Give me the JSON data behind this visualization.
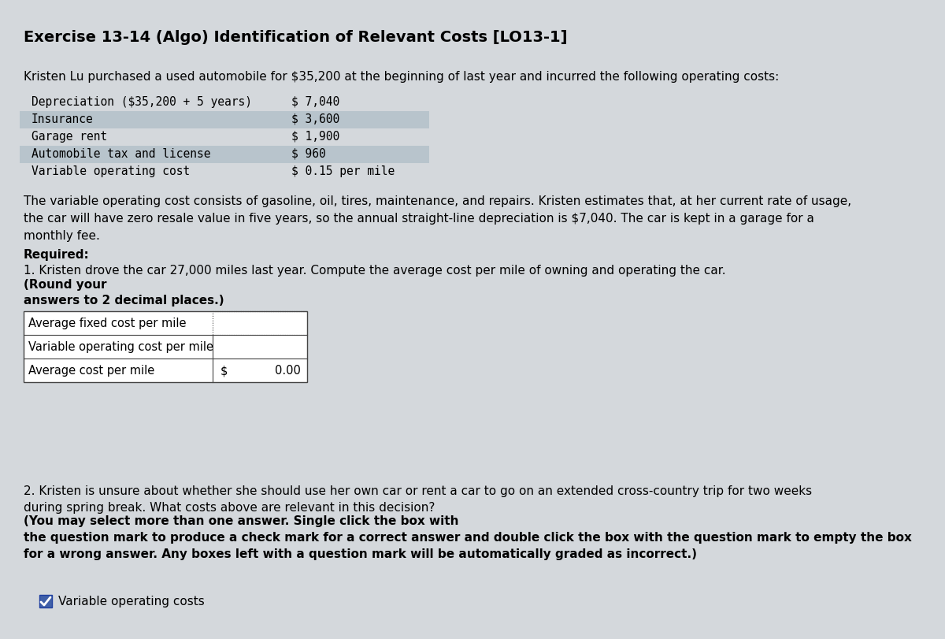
{
  "title": "Exercise 13-14 (Algo) Identification of Relevant Costs [LO13-1]",
  "intro_text": "Kristen Lu purchased a used automobile for $35,200 at the beginning of last year and incurred the following operating costs:",
  "cost_items": [
    {
      "label": "Depreciation ($35,200 + 5 years)",
      "value": "$ 7,040",
      "highlight": false
    },
    {
      "label": "Insurance",
      "value": "$ 3,600",
      "highlight": true
    },
    {
      "label": "Garage rent",
      "value": "$ 1,900",
      "highlight": false
    },
    {
      "label": "Automobile tax and license",
      "value": "$ 960",
      "highlight": true
    },
    {
      "label": "Variable operating cost",
      "value": "$ 0.15 per mile",
      "highlight": false
    }
  ],
  "highlight_color": "#b8c4cc",
  "paragraph1": "The variable operating cost consists of gasoline, oil, tires, maintenance, and repairs. Kristen estimates that, at her current rate of usage,\nthe car will have zero resale value in five years, so the annual straight-line depreciation is $7,040. The car is kept in a garage for a\nmonthly fee.",
  "required_label": "Required:",
  "required_q1_normal": "1. Kristen drove the car 27,000 miles last year. Compute the average cost per mile of owning and operating the car. ",
  "required_q1_bold": "(Round your\nanswers to 2 decimal places.)",
  "table_rows": [
    {
      "label": "Average fixed cost per mile",
      "value": "",
      "show_dollar": false,
      "dotted_right": true
    },
    {
      "label": "Variable operating cost per mile",
      "value": "",
      "show_dollar": false,
      "dotted_right": false
    },
    {
      "label": "Average cost per mile",
      "value": "0.00",
      "show_dollar": true,
      "dotted_right": false
    }
  ],
  "required_q2_normal": "2. Kristen is unsure about whether she should use her own car or rent a car to go on an extended cross-country trip for two weeks\nduring spring break. What costs above are relevant in this decision? ",
  "required_q2_bold": "(You may select more than one answer. Single click the box with\nthe question mark to produce a check mark for a correct answer and double click the box with the question mark to empty the box\nfor a wrong answer. Any boxes left with a question mark will be automatically graded as incorrect.)",
  "checkbox_label": "Variable operating costs",
  "bg_color": "#d4d8dc",
  "content_bg": "#e8eaec",
  "border_color": "#444444",
  "nav_color": "#1a3a7a",
  "title_font_size": 14,
  "body_font_size": 11,
  "mono_font_size": 10.5,
  "table_font_size": 10.5
}
